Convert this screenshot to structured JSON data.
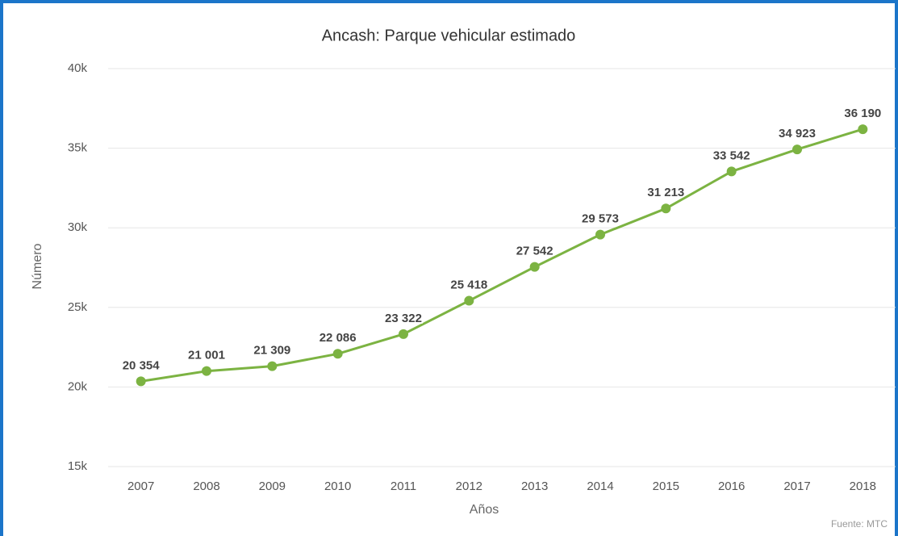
{
  "chart_data": {
    "type": "line",
    "title": "Ancash: Parque vehicular estimado",
    "x_label": "Años",
    "y_label": "Número",
    "source": "Fuente: MTC",
    "categories": [
      "2007",
      "2008",
      "2009",
      "2010",
      "2011",
      "2012",
      "2013",
      "2014",
      "2015",
      "2016",
      "2017",
      "2018"
    ],
    "series": [
      {
        "name": "Parque vehicular",
        "color": "#7cb342",
        "values": [
          20354,
          21001,
          21309,
          22086,
          23322,
          25418,
          27542,
          29573,
          31213,
          33542,
          34923,
          36190
        ],
        "value_labels": [
          "20 354",
          "21 001",
          "21 309",
          "22 086",
          "23 322",
          "25 418",
          "27 542",
          "29 573",
          "31 213",
          "33 542",
          "34 923",
          "36 190"
        ]
      }
    ],
    "ylim": [
      15000,
      40000
    ],
    "yticks": [
      {
        "value": 15000,
        "label": "15k"
      },
      {
        "value": 20000,
        "label": "20k"
      },
      {
        "value": 25000,
        "label": "25k"
      },
      {
        "value": 30000,
        "label": "30k"
      },
      {
        "value": 35000,
        "label": "35k"
      },
      {
        "value": 40000,
        "label": "40k"
      }
    ],
    "grid": true
  }
}
